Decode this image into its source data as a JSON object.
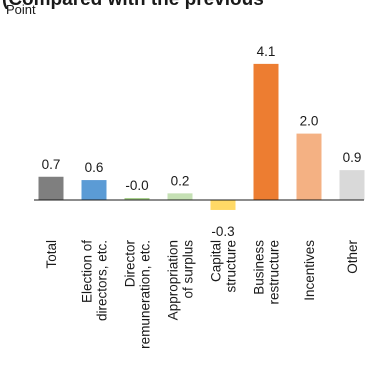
{
  "chart_data": {
    "type": "bar",
    "title": "(Compared with the previous",
    "ylabel": "Point",
    "categories": [
      "Total",
      "Election of directors, etc.",
      "Director remuneration, etc.",
      "Appropriation of surplus",
      "Capital structure",
      "Business restructure",
      "Incentives",
      "Other"
    ],
    "category_lines": [
      [
        "Total"
      ],
      [
        "Election of",
        "directors, etc."
      ],
      [
        "Director",
        "remuneration, etc."
      ],
      [
        "Appropriation",
        "of surplus"
      ],
      [
        "Capital",
        "structure"
      ],
      [
        "Business",
        "restructure"
      ],
      [
        "Incentives"
      ],
      [
        "Other"
      ]
    ],
    "values": [
      0.7,
      0.6,
      -0.0,
      0.2,
      -0.3,
      4.1,
      2.0,
      0.9
    ],
    "value_labels": [
      "0.7",
      "0.6",
      "-0.0",
      "0.2",
      "-0.3",
      "4.1",
      "2.0",
      "0.9"
    ],
    "colors": [
      "#7f7f7f",
      "#5b9bd5",
      "#a9d18e",
      "#c5e0b4",
      "#ffd966",
      "#ed7d31",
      "#f4b183",
      "#d9d9d9"
    ],
    "ylim": [
      -0.3,
      4.1
    ],
    "grid": false,
    "legend": "none"
  }
}
